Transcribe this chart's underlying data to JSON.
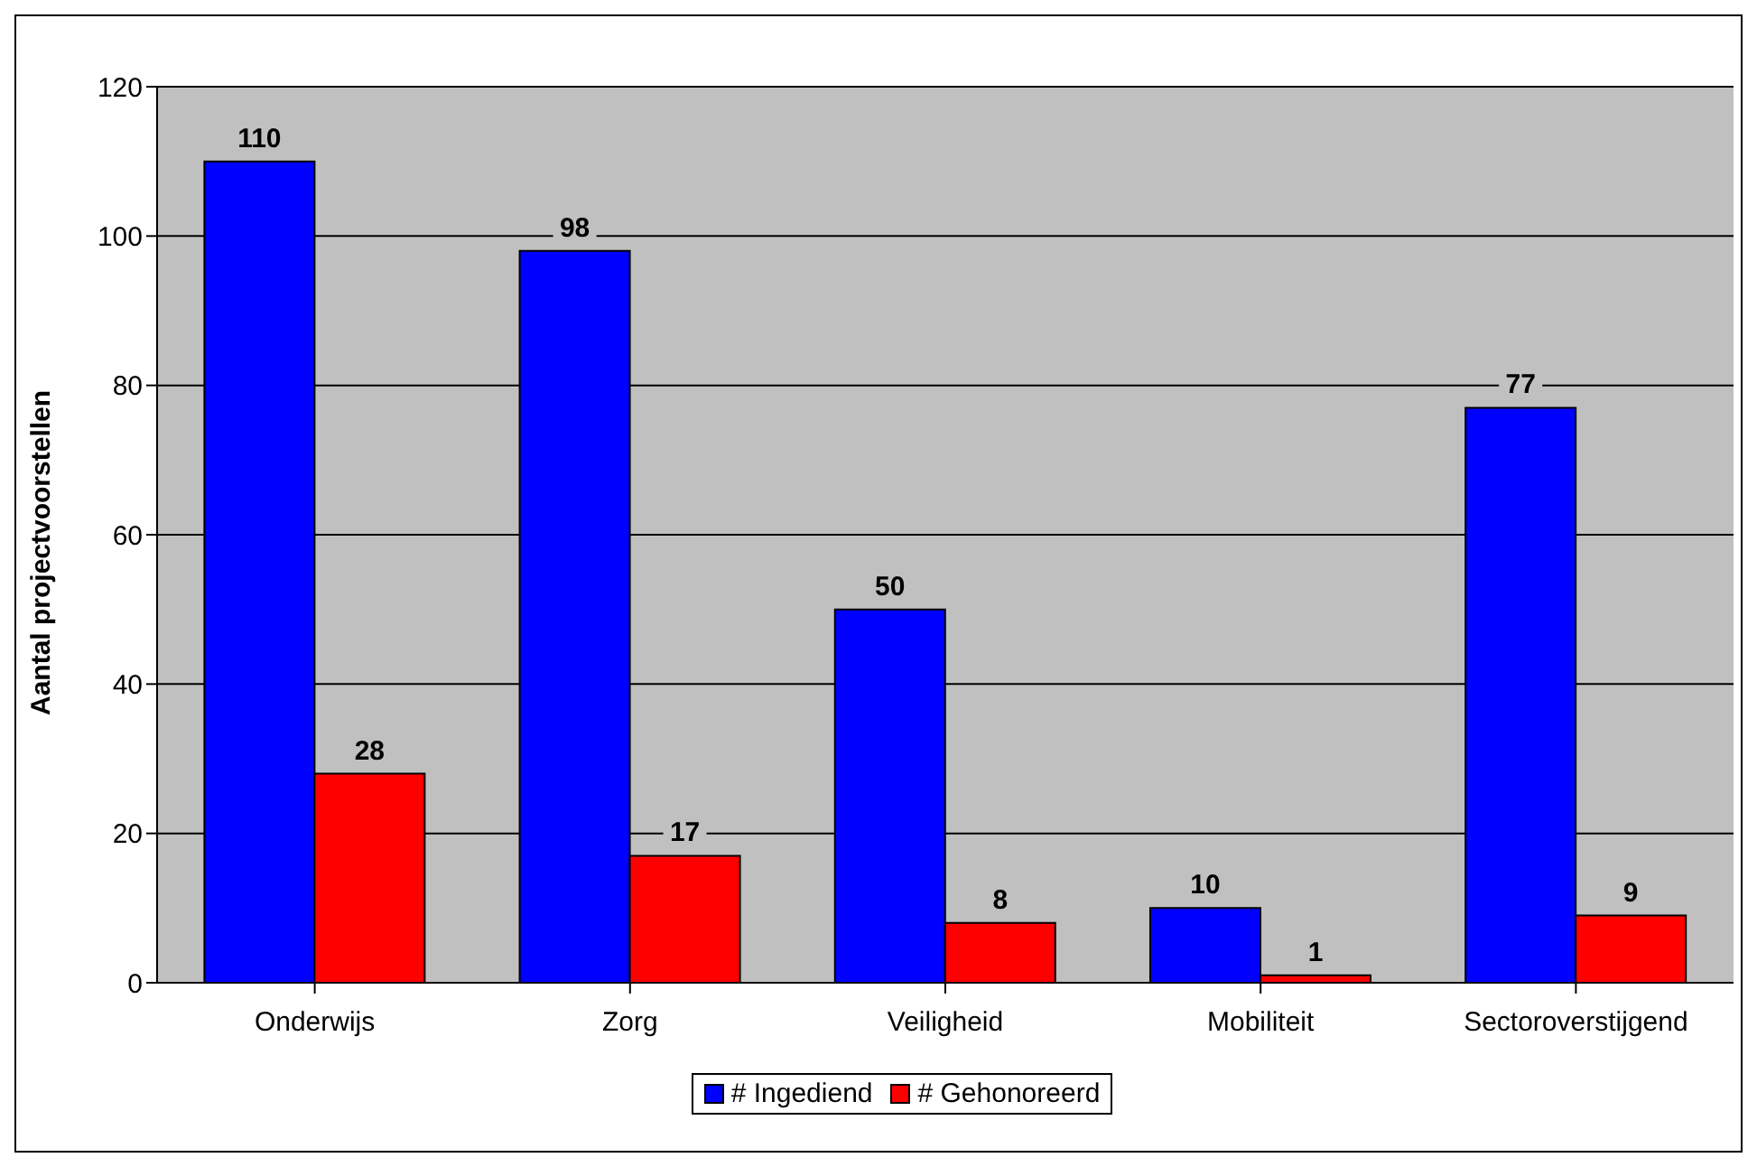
{
  "chart_data": {
    "type": "bar",
    "ylabel": "Aantal projectvoorstellen",
    "categories": [
      "Onderwijs",
      "Zorg",
      "Veiligheid",
      "Mobiliteit",
      "Sectoroverstijgend"
    ],
    "series": [
      {
        "name": "# Ingediend",
        "color": "#0000ff",
        "values": [
          110,
          98,
          50,
          10,
          77
        ]
      },
      {
        "name": "# Gehonoreerd",
        "color": "#ff0000",
        "values": [
          28,
          17,
          8,
          1,
          9
        ]
      }
    ],
    "ylim": [
      0,
      120
    ],
    "yticks": [
      0,
      20,
      40,
      60,
      80,
      100,
      120
    ],
    "grid": "y",
    "legend": "bottom",
    "data_labels": true
  }
}
